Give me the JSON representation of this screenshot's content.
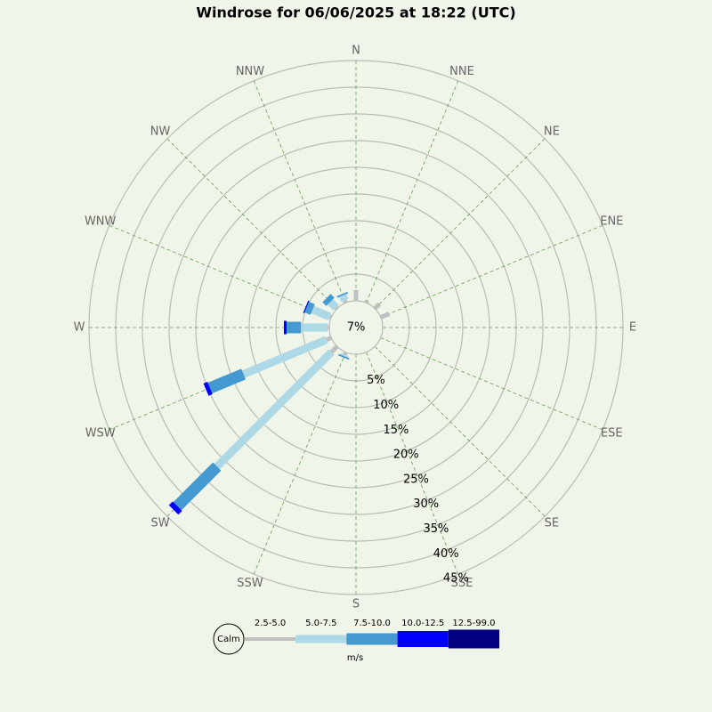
{
  "chart_data": {
    "type": "windrose",
    "title": "Windrose for 06/06/2025 at 18:22 (UTC)",
    "categories": [
      "N",
      "NNE",
      "NE",
      "ENE",
      "E",
      "ESE",
      "SE",
      "SSE",
      "S",
      "SSW",
      "SW",
      "WSW",
      "W",
      "WNW",
      "NW",
      "NNW"
    ],
    "series": [
      {
        "name": "2.5-5.0",
        "color": "#c0c0c0",
        "values": [
          2.0,
          0.5,
          1.2,
          1.7,
          0,
          0,
          0,
          0,
          0,
          0.5,
          1.5,
          1.0,
          0.3,
          0.3,
          0.3,
          0.5
        ]
      },
      {
        "name": "5.0-7.5",
        "color": "#add8e6",
        "values": [
          0,
          0,
          0,
          0,
          0,
          0,
          0,
          0,
          0,
          0.3,
          30.3,
          16.8,
          5.0,
          3.5,
          1.5,
          1.0
        ]
      },
      {
        "name": "7.5-10.0",
        "color": "#4499d0",
        "values": [
          0,
          0,
          0,
          0,
          0,
          0,
          0,
          0,
          0,
          0.3,
          10.5,
          6.8,
          2.7,
          1.2,
          1.0,
          0.3
        ]
      },
      {
        "name": "10.0-12.5",
        "color": "#0000ff",
        "values": [
          0,
          0,
          0,
          0,
          0,
          0,
          0,
          0,
          0,
          0,
          1.0,
          0.8,
          0.5,
          0.2,
          0,
          0
        ]
      },
      {
        "name": "12.5-99.0",
        "color": "#000080",
        "values": [
          0,
          0,
          0,
          0,
          0,
          0,
          0,
          0,
          0,
          0,
          0,
          0,
          0,
          0,
          0,
          0
        ]
      }
    ],
    "calm": {
      "value": 7,
      "label": "7%"
    },
    "calm_label": "Calm",
    "unit": "m/s",
    "rlim": [
      0,
      45
    ],
    "rticks": [
      {
        "value": 5,
        "label": "5%"
      },
      {
        "value": 10,
        "label": "10%"
      },
      {
        "value": 15,
        "label": "15%"
      },
      {
        "value": 20,
        "label": "20%"
      },
      {
        "value": 25,
        "label": "25%"
      },
      {
        "value": 30,
        "label": "30%"
      },
      {
        "value": 35,
        "label": "35%"
      },
      {
        "value": 40,
        "label": "40%"
      },
      {
        "value": 45,
        "label": "45%"
      }
    ],
    "grid": true
  }
}
